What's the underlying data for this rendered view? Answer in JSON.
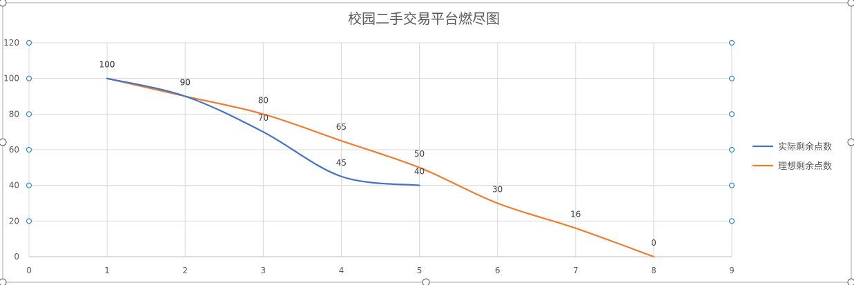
{
  "chart_data": {
    "type": "line",
    "title": "校园二手交易平台燃尽图",
    "xlabel": "",
    "ylabel": "",
    "xlim": [
      0,
      9
    ],
    "ylim": [
      0,
      120
    ],
    "x_ticks": [
      0,
      1,
      2,
      3,
      4,
      5,
      6,
      7,
      8,
      9
    ],
    "y_ticks": [
      0,
      20,
      40,
      60,
      80,
      100,
      120
    ],
    "grid": true,
    "legend_position": "right",
    "series": [
      {
        "name": "实际剩余点数",
        "color": "#4472C4",
        "x": [
          1,
          2,
          3,
          4,
          5
        ],
        "values": [
          100,
          90,
          70,
          45,
          40
        ],
        "labels": [
          "100",
          "90",
          "70",
          "45",
          "40"
        ]
      },
      {
        "name": "理想剩余点数",
        "color": "#ED7D31",
        "x": [
          1,
          2,
          3,
          4,
          5,
          6,
          7,
          8
        ],
        "values": [
          100,
          90,
          80,
          65,
          50,
          30,
          16,
          0
        ],
        "labels": [
          "100",
          "90",
          "80",
          "65",
          "50",
          "30",
          "16",
          "0"
        ]
      }
    ]
  }
}
